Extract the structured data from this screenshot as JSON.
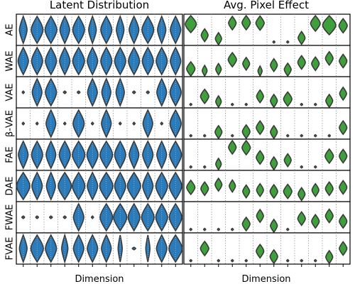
{
  "chart_data": [
    {
      "type": "violin",
      "title": "Latent Distribution",
      "xlabel": "Dimension",
      "num_dimensions": 12,
      "violin_color": "#2b7bba",
      "outline_color": "#3a3a3a",
      "rows": [
        {
          "label": "AE",
          "widths": [
            0.55,
            0.85,
            0.85,
            0.7,
            0.85,
            0.55,
            0.8,
            0.55,
            0.7,
            0.85,
            0.6,
            0.75
          ]
        },
        {
          "label": "WAE",
          "widths": [
            0.75,
            0.8,
            0.8,
            0.75,
            0.85,
            0.75,
            0.8,
            0.8,
            0.8,
            0.8,
            0.8,
            0.75
          ]
        },
        {
          "label": "VAE",
          "widths": [
            0.15,
            0.7,
            0.8,
            0.2,
            0.2,
            0.7,
            0.65,
            0.6,
            0.2,
            0.2,
            0.7,
            0.8
          ]
        },
        {
          "label": "β-VAE",
          "widths": [
            0.15,
            0.1,
            0.7,
            0.15,
            0.8,
            0.15,
            0.7,
            0.15,
            0.15,
            0.7,
            0.15,
            0.8
          ]
        },
        {
          "label": "FAE",
          "widths": [
            0.7,
            0.8,
            0.7,
            0.8,
            0.9,
            0.8,
            0.9,
            0.8,
            0.7,
            0.75,
            0.7,
            0.85
          ]
        },
        {
          "label": "DAE",
          "widths": [
            0.95,
            0.75,
            0.65,
            0.95,
            0.9,
            0.75,
            0.95,
            0.8,
            0.95,
            0.75,
            0.85,
            0.9
          ]
        },
        {
          "label": "FWAE",
          "widths": [
            0.2,
            0.2,
            0.2,
            0.2,
            0.75,
            0.15,
            0.9,
            0.95,
            0.85,
            0.9,
            0.85,
            0.9
          ]
        },
        {
          "label": "FVAE",
          "widths": [
            0.55,
            0.9,
            0.8,
            0.45,
            0.75,
            0.75,
            0.7,
            0.3,
            0.25,
            0.3,
            0.75,
            0.95
          ]
        }
      ]
    },
    {
      "type": "violin",
      "title": "Avg. Pixel Effect",
      "xlabel": "Dimension",
      "num_dimensions": 12,
      "violin_color": "#3f9f3a",
      "outline_color": "#3a3a3a",
      "rows": [
        {
          "label": "AE",
          "centers": [
            0.75,
            0.3,
            0.15,
            0.75,
            0.8,
            0.75,
            0.05,
            0.05,
            0.2,
            0.75,
            0.7,
            0.65
          ],
          "widths": [
            0.8,
            0.5,
            0.45,
            0.55,
            0.6,
            0.6,
            0.15,
            0.15,
            0.5,
            0.7,
            0.95,
            0.6
          ]
        },
        {
          "label": "WAE",
          "centers": [
            0.2,
            0.05,
            0.2,
            0.55,
            0.4,
            0.05,
            0.35,
            0.15,
            0.45,
            0.4,
            0.6,
            0.5
          ],
          "widths": [
            0.6,
            0.35,
            0.4,
            0.6,
            0.5,
            0.3,
            0.5,
            0.5,
            0.55,
            0.55,
            0.55,
            0.55
          ]
        },
        {
          "label": "VAE",
          "centers": [
            0.05,
            0.35,
            0.15,
            0.05,
            0.05,
            0.35,
            0.15,
            0.25,
            0.05,
            0.05,
            0.15,
            0.45
          ],
          "widths": [
            0.15,
            0.6,
            0.4,
            0.15,
            0.15,
            0.5,
            0.5,
            0.6,
            0.15,
            0.15,
            0.5,
            0.5
          ]
        },
        {
          "label": "β-VAE",
          "centers": [
            0.05,
            0.05,
            0.15,
            0.05,
            0.2,
            0.35,
            0.15,
            0.05,
            0.05,
            0.05,
            0.05,
            0.35
          ],
          "widths": [
            0.15,
            0.15,
            0.5,
            0.15,
            0.55,
            0.55,
            0.5,
            0.15,
            0.15,
            0.15,
            0.15,
            0.55
          ]
        },
        {
          "label": "FAE",
          "centers": [
            0.05,
            0.05,
            0.05,
            0.8,
            0.8,
            0.4,
            0.05,
            0.3,
            0.05,
            0.05,
            0.45,
            0.45
          ],
          "widths": [
            0.15,
            0.15,
            0.4,
            0.55,
            0.6,
            0.55,
            0.5,
            0.5,
            0.15,
            0.15,
            0.6,
            0.55
          ]
        },
        {
          "label": "DAE",
          "centers": [
            0.45,
            0.4,
            0.55,
            0.5,
            0.3,
            0.35,
            0.3,
            0.3,
            0.2,
            0.35,
            0.4,
            0.45
          ],
          "widths": [
            0.6,
            0.55,
            0.5,
            0.45,
            0.5,
            0.5,
            0.55,
            0.6,
            0.5,
            0.5,
            0.55,
            0.55
          ]
        },
        {
          "label": "FWAE",
          "centers": [
            0.05,
            0.05,
            0.05,
            0.05,
            0.25,
            0.55,
            0.15,
            0.05,
            0.45,
            0.35,
            0.55,
            0.35
          ],
          "widths": [
            0.15,
            0.15,
            0.15,
            0.15,
            0.55,
            0.5,
            0.5,
            0.15,
            0.55,
            0.55,
            0.55,
            0.55
          ]
        },
        {
          "label": "FVAE",
          "centers": [
            0.05,
            0.5,
            0.05,
            0.05,
            0.05,
            0.4,
            0.2,
            0.05,
            0.05,
            0.05,
            0.15,
            0.5
          ],
          "widths": [
            0.15,
            0.6,
            0.15,
            0.15,
            0.15,
            0.55,
            0.55,
            0.15,
            0.15,
            0.15,
            0.5,
            0.55
          ]
        }
      ]
    }
  ]
}
